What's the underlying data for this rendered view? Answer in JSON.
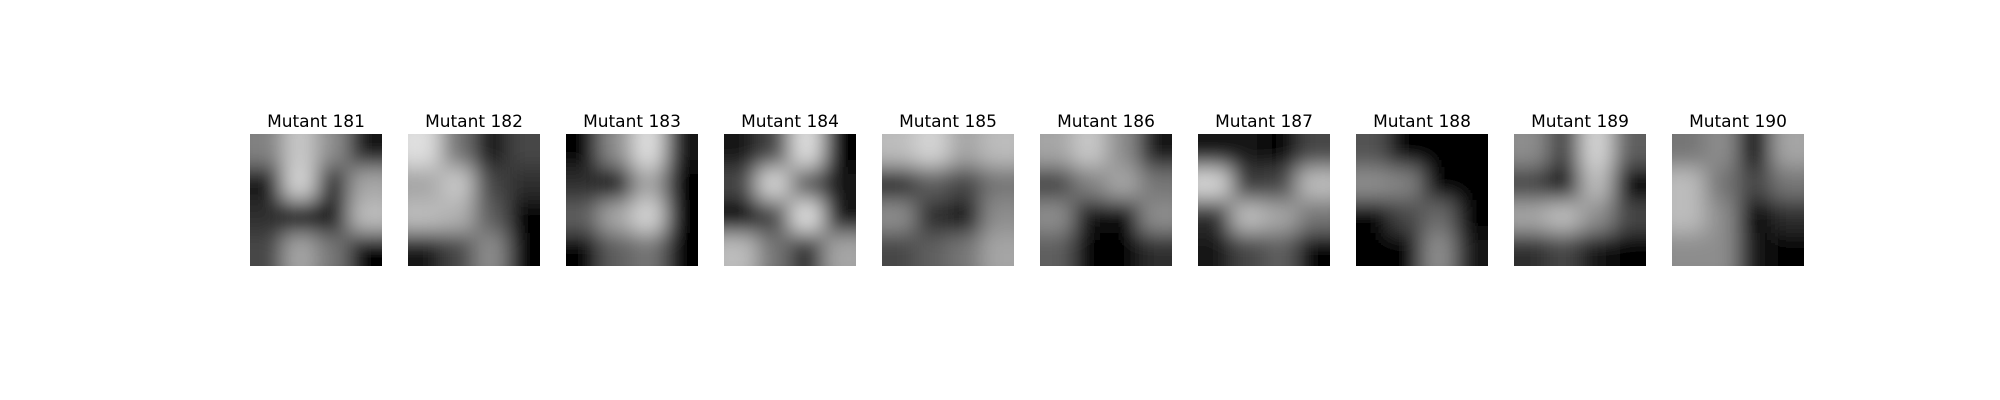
{
  "figure": {
    "panels": [
      {
        "title": "Mutant 181",
        "pattern": [
          [
            0.55,
            0.85,
            0.6,
            0.1
          ],
          [
            0.1,
            0.9,
            0.2,
            0.7
          ],
          [
            0.2,
            0.1,
            0.1,
            0.8
          ],
          [
            0.3,
            0.7,
            0.5,
            0.0
          ]
        ]
      },
      {
        "title": "Mutant 182",
        "pattern": [
          [
            0.95,
            0.5,
            0.1,
            0.3
          ],
          [
            0.7,
            0.85,
            0.3,
            0.2
          ],
          [
            0.8,
            0.75,
            0.4,
            0.0
          ],
          [
            0.1,
            0.3,
            0.6,
            0.0
          ]
        ]
      },
      {
        "title": "Mutant 183",
        "pattern": [
          [
            0.0,
            0.6,
            0.95,
            0.1
          ],
          [
            0.2,
            0.1,
            0.7,
            0.0
          ],
          [
            0.4,
            0.7,
            0.9,
            0.0
          ],
          [
            0.0,
            0.4,
            0.5,
            0.0
          ]
        ]
      },
      {
        "title": "Mutant 184",
        "pattern": [
          [
            0.1,
            0.3,
            0.95,
            0.0
          ],
          [
            0.3,
            0.9,
            0.4,
            0.1
          ],
          [
            0.0,
            0.3,
            0.95,
            0.1
          ],
          [
            0.8,
            0.5,
            0.2,
            0.7
          ]
        ]
      },
      {
        "title": "Mutant 185",
        "pattern": [
          [
            0.8,
            0.9,
            0.7,
            0.8
          ],
          [
            0.2,
            0.4,
            0.3,
            0.5
          ],
          [
            0.6,
            0.2,
            0.1,
            0.6
          ],
          [
            0.3,
            0.4,
            0.5,
            0.7
          ]
        ]
      },
      {
        "title": "Mutant 186",
        "pattern": [
          [
            0.7,
            0.85,
            0.6,
            0.1
          ],
          [
            0.3,
            0.55,
            0.7,
            0.5
          ],
          [
            0.6,
            0.1,
            0.0,
            0.6
          ],
          [
            0.4,
            0.0,
            0.0,
            0.2
          ]
        ]
      },
      {
        "title": "Mutant 187",
        "pattern": [
          [
            0.1,
            0.1,
            0.0,
            0.3
          ],
          [
            0.9,
            0.25,
            0.3,
            0.8
          ],
          [
            0.2,
            0.8,
            0.7,
            0.5
          ],
          [
            0.1,
            0.3,
            0.4,
            0.0
          ]
        ]
      },
      {
        "title": "Mutant 188",
        "pattern": [
          [
            0.35,
            0.0,
            0.0,
            0.0
          ],
          [
            0.6,
            0.55,
            0.0,
            0.0
          ],
          [
            0.0,
            0.3,
            0.45,
            0.0
          ],
          [
            0.0,
            0.0,
            0.6,
            0.1
          ]
        ]
      },
      {
        "title": "Mutant 189",
        "pattern": [
          [
            0.6,
            0.3,
            0.9,
            0.4
          ],
          [
            0.3,
            0.1,
            0.8,
            0.0
          ],
          [
            0.7,
            0.8,
            0.6,
            0.3
          ],
          [
            0.2,
            0.3,
            0.1,
            0.0
          ]
        ]
      },
      {
        "title": "Mutant 190",
        "pattern": [
          [
            0.5,
            0.6,
            0.0,
            0.7
          ],
          [
            0.8,
            0.5,
            0.3,
            0.5
          ],
          [
            0.8,
            0.6,
            0.0,
            0.2
          ],
          [
            0.6,
            0.6,
            0.1,
            0.0
          ]
        ]
      }
    ]
  }
}
